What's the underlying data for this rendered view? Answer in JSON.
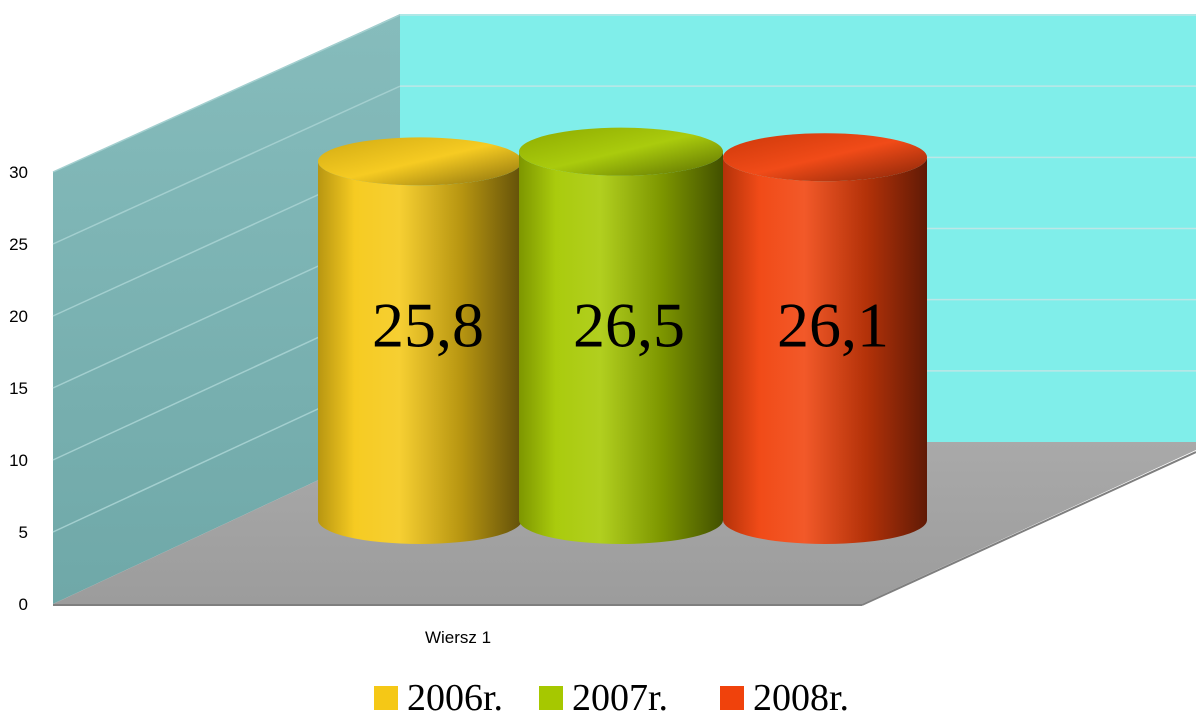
{
  "chart_data": {
    "type": "bar",
    "bar_shape": "cylinder-3d",
    "categories": [
      "Wiersz 1"
    ],
    "series": [
      {
        "name": "2006r.",
        "values": [
          25.8
        ],
        "label": "25,8",
        "color": "#f5c816"
      },
      {
        "name": "2007r.",
        "values": [
          26.5
        ],
        "label": "26,5",
        "color": "#a6c800"
      },
      {
        "name": "2008r.",
        "values": [
          26.1
        ],
        "label": "26,1",
        "color": "#f0420c"
      }
    ],
    "yticks": [
      "0",
      "5",
      "10",
      "15",
      "20",
      "25",
      "30"
    ],
    "ylim": [
      0,
      30
    ],
    "grid": true,
    "legend_position": "bottom",
    "colors": {
      "back_wall": "#80eeea",
      "side_wall": "#7ab4b4",
      "floor": "#a6a6a6",
      "gridline": "#bde6e6"
    }
  }
}
